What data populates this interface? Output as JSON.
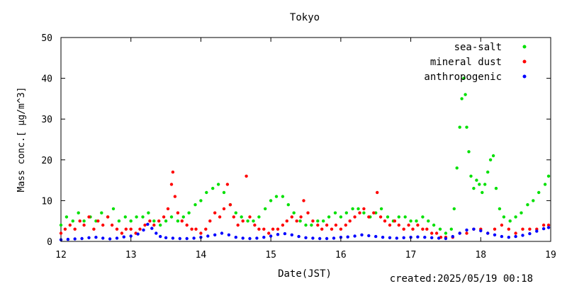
{
  "chart_data": {
    "type": "scatter",
    "title": "Tokyo",
    "xlabel": "Date(JST)",
    "ylabel": "Mass conc.[ μg/m^3]",
    "footer": "created:2025/05/19 00:18",
    "xlim": [
      12,
      19
    ],
    "ylim": [
      0,
      50
    ],
    "xticks": [
      12,
      13,
      14,
      15,
      16,
      17,
      18,
      19
    ],
    "yticks": [
      0,
      10,
      20,
      30,
      40,
      50
    ],
    "legend_position": "top-right",
    "grid": false,
    "series": [
      {
        "name": "sea-salt",
        "color": "#00e000",
        "points": [
          [
            12.0,
            4
          ],
          [
            12.08,
            6
          ],
          [
            12.17,
            5
          ],
          [
            12.25,
            7
          ],
          [
            12.33,
            5
          ],
          [
            12.42,
            6
          ],
          [
            12.5,
            5
          ],
          [
            12.58,
            7
          ],
          [
            12.67,
            6
          ],
          [
            12.75,
            8
          ],
          [
            12.83,
            5
          ],
          [
            12.92,
            6
          ],
          [
            13.0,
            5
          ],
          [
            13.08,
            6
          ],
          [
            13.17,
            6
          ],
          [
            13.25,
            7
          ],
          [
            13.33,
            5
          ],
          [
            13.42,
            4
          ],
          [
            13.5,
            5
          ],
          [
            13.58,
            6
          ],
          [
            13.67,
            5
          ],
          [
            13.75,
            6
          ],
          [
            13.83,
            7
          ],
          [
            13.92,
            9
          ],
          [
            14.0,
            10
          ],
          [
            14.08,
            12
          ],
          [
            14.17,
            13
          ],
          [
            14.25,
            14
          ],
          [
            14.33,
            12
          ],
          [
            14.42,
            9
          ],
          [
            14.5,
            7
          ],
          [
            14.58,
            6
          ],
          [
            14.67,
            5
          ],
          [
            14.75,
            5
          ],
          [
            14.83,
            6
          ],
          [
            14.92,
            8
          ],
          [
            15.0,
            10
          ],
          [
            15.08,
            11
          ],
          [
            15.17,
            11
          ],
          [
            15.25,
            9
          ],
          [
            15.33,
            7
          ],
          [
            15.42,
            5
          ],
          [
            15.5,
            4
          ],
          [
            15.58,
            4
          ],
          [
            15.67,
            5
          ],
          [
            15.75,
            5
          ],
          [
            15.83,
            6
          ],
          [
            15.92,
            7
          ],
          [
            16.0,
            6
          ],
          [
            16.08,
            7
          ],
          [
            16.17,
            8
          ],
          [
            16.25,
            8
          ],
          [
            16.33,
            7
          ],
          [
            16.42,
            6
          ],
          [
            16.5,
            7
          ],
          [
            16.58,
            8
          ],
          [
            16.67,
            6
          ],
          [
            16.75,
            5
          ],
          [
            16.83,
            6
          ],
          [
            16.92,
            6
          ],
          [
            17.0,
            5
          ],
          [
            17.08,
            5
          ],
          [
            17.17,
            6
          ],
          [
            17.25,
            5
          ],
          [
            17.33,
            4
          ],
          [
            17.42,
            3
          ],
          [
            17.5,
            2
          ],
          [
            17.58,
            3
          ],
          [
            17.62,
            8
          ],
          [
            17.66,
            18
          ],
          [
            17.7,
            28
          ],
          [
            17.73,
            35
          ],
          [
            17.76,
            40
          ],
          [
            17.78,
            36
          ],
          [
            17.8,
            28
          ],
          [
            17.83,
            22
          ],
          [
            17.86,
            16
          ],
          [
            17.9,
            13
          ],
          [
            17.94,
            15
          ],
          [
            17.98,
            14
          ],
          [
            18.02,
            12
          ],
          [
            18.06,
            14
          ],
          [
            18.1,
            17
          ],
          [
            18.14,
            20
          ],
          [
            18.18,
            21
          ],
          [
            18.22,
            13
          ],
          [
            18.27,
            8
          ],
          [
            18.33,
            6
          ],
          [
            18.42,
            5
          ],
          [
            18.5,
            6
          ],
          [
            18.58,
            7
          ],
          [
            18.67,
            9
          ],
          [
            18.75,
            10
          ],
          [
            18.83,
            12
          ],
          [
            18.92,
            14
          ],
          [
            18.97,
            16
          ]
        ]
      },
      {
        "name": "mineral dust",
        "color": "#ff0000",
        "points": [
          [
            12.0,
            2
          ],
          [
            12.06,
            3
          ],
          [
            12.13,
            4
          ],
          [
            12.2,
            3
          ],
          [
            12.27,
            5
          ],
          [
            12.33,
            4
          ],
          [
            12.4,
            6
          ],
          [
            12.47,
            3
          ],
          [
            12.53,
            5
          ],
          [
            12.6,
            4
          ],
          [
            12.67,
            6
          ],
          [
            12.73,
            4
          ],
          [
            12.8,
            3
          ],
          [
            12.87,
            2
          ],
          [
            12.93,
            3
          ],
          [
            13.0,
            3
          ],
          [
            13.07,
            2
          ],
          [
            13.13,
            3
          ],
          [
            13.2,
            4
          ],
          [
            13.27,
            5
          ],
          [
            13.33,
            4
          ],
          [
            13.4,
            5
          ],
          [
            13.47,
            6
          ],
          [
            13.53,
            8
          ],
          [
            13.58,
            14
          ],
          [
            13.6,
            17
          ],
          [
            13.63,
            11
          ],
          [
            13.67,
            7
          ],
          [
            13.73,
            5
          ],
          [
            13.8,
            4
          ],
          [
            13.87,
            3
          ],
          [
            13.93,
            3
          ],
          [
            14.0,
            2
          ],
          [
            14.07,
            3
          ],
          [
            14.13,
            5
          ],
          [
            14.2,
            7
          ],
          [
            14.27,
            6
          ],
          [
            14.33,
            8
          ],
          [
            14.38,
            14
          ],
          [
            14.42,
            9
          ],
          [
            14.47,
            6
          ],
          [
            14.53,
            4
          ],
          [
            14.6,
            5
          ],
          [
            14.65,
            16
          ],
          [
            14.7,
            6
          ],
          [
            14.77,
            4
          ],
          [
            14.83,
            3
          ],
          [
            14.9,
            3
          ],
          [
            14.97,
            2
          ],
          [
            15.03,
            3
          ],
          [
            15.1,
            3
          ],
          [
            15.17,
            4
          ],
          [
            15.23,
            5
          ],
          [
            15.3,
            6
          ],
          [
            15.37,
            5
          ],
          [
            15.43,
            6
          ],
          [
            15.47,
            10
          ],
          [
            15.53,
            7
          ],
          [
            15.6,
            5
          ],
          [
            15.67,
            4
          ],
          [
            15.73,
            3
          ],
          [
            15.8,
            4
          ],
          [
            15.87,
            3
          ],
          [
            15.93,
            4
          ],
          [
            16.0,
            3
          ],
          [
            16.07,
            4
          ],
          [
            16.13,
            5
          ],
          [
            16.2,
            6
          ],
          [
            16.27,
            7
          ],
          [
            16.33,
            8
          ],
          [
            16.4,
            6
          ],
          [
            16.47,
            7
          ],
          [
            16.52,
            12
          ],
          [
            16.57,
            6
          ],
          [
            16.63,
            5
          ],
          [
            16.7,
            4
          ],
          [
            16.77,
            5
          ],
          [
            16.83,
            4
          ],
          [
            16.9,
            3
          ],
          [
            16.97,
            4
          ],
          [
            17.03,
            3
          ],
          [
            17.1,
            4
          ],
          [
            17.17,
            3
          ],
          [
            17.23,
            3
          ],
          [
            17.3,
            2
          ],
          [
            17.37,
            2
          ],
          [
            17.43,
            1
          ],
          [
            17.5,
            1
          ],
          [
            17.6,
            1
          ],
          [
            17.7,
            2
          ],
          [
            17.8,
            2
          ],
          [
            17.9,
            3
          ],
          [
            18.0,
            3
          ],
          [
            18.1,
            2
          ],
          [
            18.2,
            3
          ],
          [
            18.3,
            4
          ],
          [
            18.4,
            3
          ],
          [
            18.5,
            2
          ],
          [
            18.6,
            3
          ],
          [
            18.7,
            3
          ],
          [
            18.8,
            3
          ],
          [
            18.9,
            4
          ],
          [
            18.97,
            4
          ]
        ]
      },
      {
        "name": "anthropogenic",
        "color": "#0000ff",
        "points": [
          [
            12.0,
            0.4
          ],
          [
            12.1,
            0.5
          ],
          [
            12.2,
            0.6
          ],
          [
            12.3,
            0.7
          ],
          [
            12.4,
            0.9
          ],
          [
            12.5,
            1.0
          ],
          [
            12.6,
            0.8
          ],
          [
            12.7,
            0.6
          ],
          [
            12.8,
            0.8
          ],
          [
            12.9,
            1.1
          ],
          [
            13.0,
            1.3
          ],
          [
            13.1,
            1.8
          ],
          [
            13.18,
            2.8
          ],
          [
            13.24,
            4.2
          ],
          [
            13.3,
            3.2
          ],
          [
            13.36,
            2.0
          ],
          [
            13.42,
            1.2
          ],
          [
            13.5,
            0.9
          ],
          [
            13.6,
            0.8
          ],
          [
            13.7,
            0.7
          ],
          [
            13.8,
            0.7
          ],
          [
            13.9,
            0.8
          ],
          [
            14.0,
            1.0
          ],
          [
            14.1,
            1.3
          ],
          [
            14.2,
            1.6
          ],
          [
            14.3,
            2.0
          ],
          [
            14.4,
            1.6
          ],
          [
            14.5,
            1.0
          ],
          [
            14.6,
            0.8
          ],
          [
            14.7,
            0.7
          ],
          [
            14.8,
            0.8
          ],
          [
            14.9,
            1.0
          ],
          [
            15.0,
            1.3
          ],
          [
            15.1,
            1.7
          ],
          [
            15.2,
            1.9
          ],
          [
            15.3,
            1.6
          ],
          [
            15.4,
            1.2
          ],
          [
            15.5,
            0.9
          ],
          [
            15.6,
            0.8
          ],
          [
            15.7,
            0.7
          ],
          [
            15.8,
            0.7
          ],
          [
            15.9,
            0.8
          ],
          [
            16.0,
            1.0
          ],
          [
            16.1,
            1.1
          ],
          [
            16.2,
            1.3
          ],
          [
            16.3,
            1.6
          ],
          [
            16.4,
            1.4
          ],
          [
            16.5,
            1.2
          ],
          [
            16.6,
            1.0
          ],
          [
            16.7,
            0.9
          ],
          [
            16.8,
            0.8
          ],
          [
            16.9,
            0.9
          ],
          [
            17.0,
            1.0
          ],
          [
            17.1,
            1.1
          ],
          [
            17.2,
            1.0
          ],
          [
            17.3,
            0.9
          ],
          [
            17.4,
            0.8
          ],
          [
            17.5,
            0.7
          ],
          [
            17.6,
            1.2
          ],
          [
            17.7,
            2.0
          ],
          [
            17.8,
            2.8
          ],
          [
            17.9,
            3.0
          ],
          [
            18.0,
            2.6
          ],
          [
            18.1,
            2.0
          ],
          [
            18.2,
            1.6
          ],
          [
            18.3,
            1.2
          ],
          [
            18.4,
            1.0
          ],
          [
            18.5,
            1.2
          ],
          [
            18.6,
            1.5
          ],
          [
            18.7,
            1.9
          ],
          [
            18.8,
            2.5
          ],
          [
            18.9,
            3.1
          ],
          [
            18.97,
            3.4
          ]
        ]
      }
    ]
  }
}
